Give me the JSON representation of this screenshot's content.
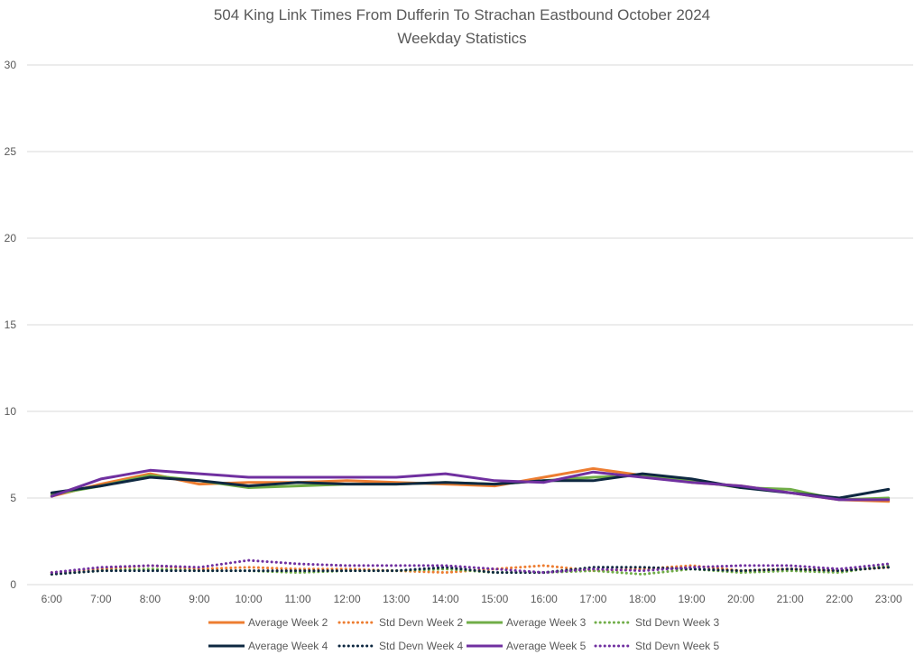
{
  "chart_data": {
    "type": "line",
    "title": "504 King Link Times From Dufferin To Strachan Eastbound October 2024",
    "subtitle": "Weekday Statistics",
    "xlabel": "",
    "ylabel": "",
    "ylim": [
      0,
      30
    ],
    "yticks": [
      0,
      5,
      10,
      15,
      20,
      25,
      30
    ],
    "grid": true,
    "legend_position": "bottom",
    "categories": [
      "6:00",
      "7:00",
      "8:00",
      "9:00",
      "10:00",
      "11:00",
      "12:00",
      "13:00",
      "14:00",
      "15:00",
      "16:00",
      "17:00",
      "18:00",
      "19:00",
      "20:00",
      "21:00",
      "22:00",
      "23:00"
    ],
    "series": [
      {
        "name": "Average Week 2",
        "color": "#ed7d31",
        "dash": "solid",
        "values": [
          5.1,
          5.8,
          6.4,
          5.8,
          5.9,
          5.9,
          6.0,
          5.9,
          5.8,
          5.7,
          6.2,
          6.7,
          6.3,
          5.9,
          5.7,
          5.3,
          4.9,
          4.8
        ]
      },
      {
        "name": "Std Devn Week 2",
        "color": "#ed7d31",
        "dash": "dotted",
        "values": [
          0.7,
          0.9,
          1.1,
          0.9,
          1.0,
          0.9,
          0.9,
          0.8,
          0.7,
          0.9,
          1.1,
          0.8,
          0.9,
          1.1,
          0.8,
          0.9,
          0.8,
          1.0
        ]
      },
      {
        "name": "Average Week 3",
        "color": "#70ad47",
        "dash": "solid",
        "values": [
          5.2,
          5.7,
          6.3,
          6.0,
          5.6,
          5.7,
          5.8,
          5.8,
          5.9,
          5.8,
          6.0,
          6.2,
          6.3,
          6.0,
          5.6,
          5.5,
          4.9,
          5.0
        ]
      },
      {
        "name": "Std Devn Week 3",
        "color": "#70ad47",
        "dash": "dotted",
        "values": [
          0.6,
          0.8,
          0.9,
          0.8,
          0.8,
          0.7,
          0.8,
          0.8,
          0.9,
          0.7,
          0.7,
          0.8,
          0.6,
          0.9,
          0.7,
          0.8,
          0.7,
          1.1
        ]
      },
      {
        "name": "Average Week 4",
        "color": "#0e2841",
        "dash": "solid",
        "values": [
          5.3,
          5.7,
          6.2,
          6.0,
          5.7,
          5.9,
          5.8,
          5.8,
          5.9,
          5.8,
          6.0,
          6.0,
          6.4,
          6.1,
          5.6,
          5.3,
          5.0,
          5.5
        ]
      },
      {
        "name": "Std Devn Week 4",
        "color": "#0e2841",
        "dash": "dotted",
        "values": [
          0.6,
          0.8,
          0.8,
          0.8,
          0.8,
          0.8,
          0.8,
          0.8,
          1.0,
          0.7,
          0.7,
          1.0,
          1.0,
          0.9,
          0.8,
          0.9,
          0.8,
          1.0
        ]
      },
      {
        "name": "Average Week 5",
        "color": "#7030a0",
        "dash": "solid",
        "values": [
          5.1,
          6.1,
          6.6,
          6.4,
          6.2,
          6.2,
          6.2,
          6.2,
          6.4,
          6.0,
          5.9,
          6.5,
          6.2,
          5.9,
          5.7,
          5.3,
          4.9,
          4.9
        ]
      },
      {
        "name": "Std Devn Week 5",
        "color": "#7030a0",
        "dash": "dotted",
        "values": [
          0.7,
          1.0,
          1.1,
          1.0,
          1.4,
          1.2,
          1.1,
          1.1,
          1.1,
          0.9,
          0.7,
          0.9,
          0.8,
          1.0,
          1.1,
          1.1,
          0.9,
          1.2
        ]
      }
    ]
  }
}
